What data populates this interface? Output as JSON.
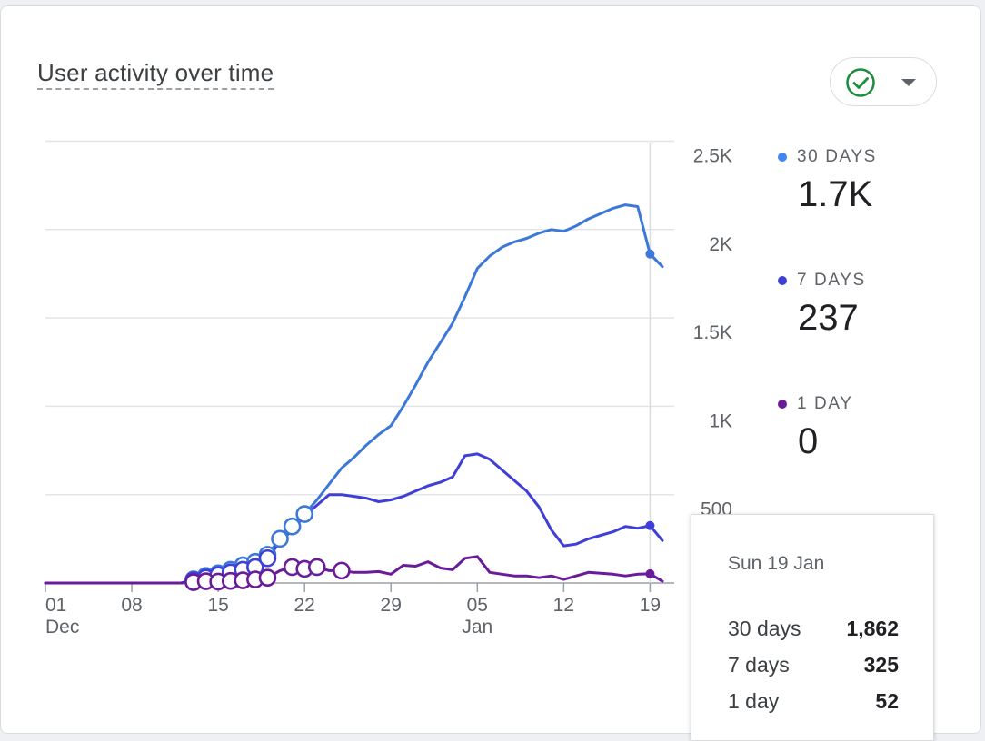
{
  "card": {
    "title": "User activity over time",
    "status_icon": "check-circle-icon",
    "dropdown_icon": "caret-down-icon",
    "status_color": "#1e8e3e"
  },
  "legend": [
    {
      "label": "30 DAYS",
      "value": "1.7K",
      "color": "#4285f4"
    },
    {
      "label": "7 DAYS",
      "value": "237",
      "color": "#3f3fd8"
    },
    {
      "label": "1 DAY",
      "value": "0",
      "color": "#6a1b9a"
    }
  ],
  "tooltip": {
    "date": "Sun 19 Jan",
    "rows": [
      {
        "label": "30 days",
        "value": "1,862"
      },
      {
        "label": "7 days",
        "value": "325"
      },
      {
        "label": "1 day",
        "value": "52"
      }
    ]
  },
  "chart_data": {
    "type": "line",
    "x_start": "2024-12-01",
    "x": [
      "01 Dec",
      "02 Dec",
      "03 Dec",
      "04 Dec",
      "05 Dec",
      "06 Dec",
      "07 Dec",
      "08 Dec",
      "09 Dec",
      "10 Dec",
      "11 Dec",
      "12 Dec",
      "13 Dec",
      "14 Dec",
      "15 Dec",
      "16 Dec",
      "17 Dec",
      "18 Dec",
      "19 Dec",
      "20 Dec",
      "21 Dec",
      "22 Dec",
      "23 Dec",
      "24 Dec",
      "25 Dec",
      "26 Dec",
      "27 Dec",
      "28 Dec",
      "29 Dec",
      "30 Dec",
      "31 Dec",
      "01 Jan",
      "02 Jan",
      "03 Jan",
      "04 Jan",
      "05 Jan",
      "06 Jan",
      "07 Jan",
      "08 Jan",
      "09 Jan",
      "10 Jan",
      "11 Jan",
      "12 Jan",
      "13 Jan",
      "14 Jan",
      "15 Jan",
      "16 Jan",
      "17 Jan",
      "18 Jan",
      "19 Jan",
      "20 Jan"
    ],
    "x_ticks": [
      {
        "index": 0,
        "label": "01",
        "sub": "Dec"
      },
      {
        "index": 7,
        "label": "08",
        "sub": ""
      },
      {
        "index": 14,
        "label": "15",
        "sub": ""
      },
      {
        "index": 21,
        "label": "22",
        "sub": ""
      },
      {
        "index": 28,
        "label": "29",
        "sub": ""
      },
      {
        "index": 35,
        "label": "05",
        "sub": "Jan"
      },
      {
        "index": 42,
        "label": "12",
        "sub": ""
      },
      {
        "index": 49,
        "label": "19",
        "sub": ""
      }
    ],
    "y_ticks": [
      {
        "value": 500,
        "label": "500"
      },
      {
        "value": 1000,
        "label": "1K"
      },
      {
        "value": 1500,
        "label": "1.5K"
      },
      {
        "value": 2000,
        "label": "2K"
      },
      {
        "value": 2500,
        "label": "2.5K"
      }
    ],
    "ylim": [
      0,
      2500
    ],
    "grid": true,
    "highlight_index": 49,
    "series": [
      {
        "name": "30 days",
        "color": "#3c78d8",
        "values": [
          0,
          0,
          0,
          0,
          0,
          0,
          0,
          0,
          0,
          0,
          0,
          0,
          20,
          40,
          55,
          75,
          100,
          120,
          160,
          250,
          320,
          390,
          470,
          560,
          650,
          710,
          780,
          840,
          890,
          1000,
          1120,
          1250,
          1360,
          1470,
          1620,
          1780,
          1850,
          1900,
          1930,
          1950,
          1980,
          2000,
          1990,
          2020,
          2060,
          2090,
          2120,
          2140,
          2130,
          1862,
          1790
        ],
        "markers": [
          12,
          13,
          14,
          15,
          16,
          17,
          18,
          19,
          20,
          21
        ]
      },
      {
        "name": "7 days",
        "color": "#3f3fd8",
        "values": [
          0,
          0,
          0,
          0,
          0,
          0,
          0,
          0,
          0,
          0,
          0,
          0,
          15,
          30,
          45,
          60,
          75,
          90,
          140,
          230,
          300,
          380,
          440,
          500,
          500,
          490,
          480,
          460,
          470,
          490,
          520,
          550,
          570,
          600,
          720,
          730,
          700,
          640,
          580,
          520,
          430,
          300,
          210,
          220,
          250,
          270,
          290,
          320,
          310,
          325,
          240
        ],
        "markers": [
          12,
          13,
          14,
          15,
          16,
          17,
          18
        ]
      },
      {
        "name": "1 day",
        "color": "#6a1b9a",
        "values": [
          0,
          0,
          0,
          0,
          0,
          0,
          0,
          0,
          0,
          0,
          0,
          0,
          5,
          10,
          8,
          12,
          15,
          20,
          30,
          70,
          90,
          80,
          90,
          70,
          70,
          60,
          60,
          65,
          50,
          100,
          95,
          120,
          85,
          75,
          140,
          150,
          60,
          50,
          40,
          40,
          30,
          40,
          20,
          40,
          60,
          55,
          50,
          40,
          50,
          52,
          10
        ],
        "markers": [
          12,
          13,
          14,
          15,
          16,
          17,
          18,
          20,
          21,
          22,
          24
        ]
      }
    ]
  }
}
